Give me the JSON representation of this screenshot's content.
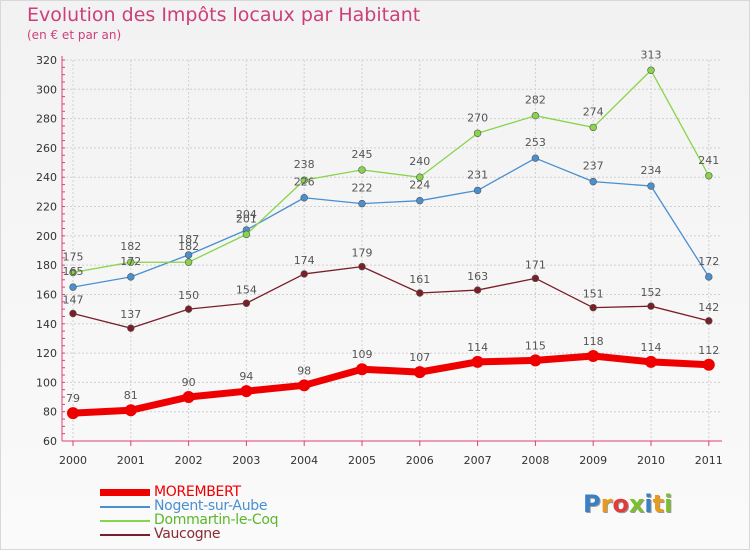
{
  "title": "Evolution des Impôts locaux par Habitant",
  "subtitle": "(en € et par an)",
  "logo": {
    "text": "Proxiti",
    "colors": [
      "#3a7fc4",
      "#e89a1c",
      "#e03c3c",
      "#7bbf2e",
      "#3a7fc4",
      "#e89a1c",
      "#7bbf2e"
    ]
  },
  "chart_data": {
    "type": "line",
    "x": [
      "2000",
      "2001",
      "2002",
      "2003",
      "2004",
      "2005",
      "2006",
      "2007",
      "2008",
      "2009",
      "2010",
      "2011"
    ],
    "ylim": [
      60,
      320
    ],
    "yticks": [
      60,
      80,
      100,
      120,
      140,
      160,
      180,
      200,
      220,
      240,
      260,
      280,
      300,
      320
    ],
    "grid": true,
    "legend": "bottom-left",
    "series": [
      {
        "name": "MOREMBERT",
        "color": "#ee0000",
        "values": [
          79,
          81,
          90,
          94,
          98,
          109,
          107,
          114,
          115,
          118,
          114,
          112
        ]
      },
      {
        "name": "Nogent-sur-Aube",
        "color": "#4a8fd0",
        "values": [
          165,
          172,
          187,
          204,
          226,
          222,
          224,
          231,
          253,
          237,
          234,
          172
        ]
      },
      {
        "name": "Dommartin-le-Coq",
        "color": "#88d44a",
        "values": [
          175,
          182,
          182,
          201,
          238,
          245,
          240,
          270,
          282,
          274,
          313,
          241
        ]
      },
      {
        "name": "Vaucogne",
        "color": "#7a1f28",
        "values": [
          147,
          137,
          150,
          154,
          174,
          179,
          161,
          163,
          171,
          151,
          152,
          142
        ]
      }
    ]
  }
}
